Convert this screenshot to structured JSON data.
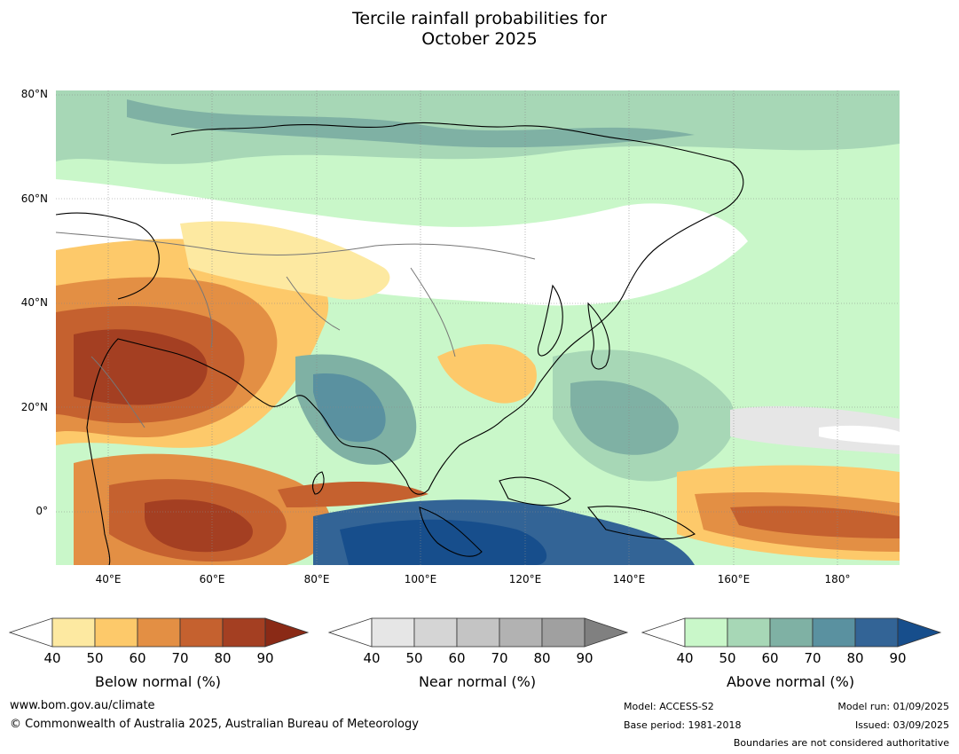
{
  "title_line1": "Tercile rainfall probabilities for",
  "title_line2": "October 2025",
  "map": {
    "lat_labels": [
      "80°N",
      "60°N",
      "40°N",
      "20°N",
      "0°"
    ],
    "lon_labels": [
      "40°E",
      "60°E",
      "80°E",
      "100°E",
      "120°E",
      "140°E",
      "160°E",
      "180°"
    ]
  },
  "colorbars": [
    {
      "title": "Below normal (%)",
      "ticks": [
        "40",
        "50",
        "60",
        "70",
        "80",
        "90"
      ],
      "colors": [
        "#ffffff",
        "#fde9a1",
        "#fdc96a",
        "#e38f44",
        "#c5612f",
        "#a43f22",
        "#8a2a16"
      ]
    },
    {
      "title": "Near normal (%)",
      "ticks": [
        "40",
        "50",
        "60",
        "70",
        "80",
        "90"
      ],
      "colors": [
        "#ffffff",
        "#e6e6e6",
        "#d5d5d5",
        "#c4c4c4",
        "#b2b2b2",
        "#a0a0a0",
        "#808080"
      ]
    },
    {
      "title": "Above normal (%)",
      "ticks": [
        "40",
        "50",
        "60",
        "70",
        "80",
        "90"
      ],
      "colors": [
        "#ffffff",
        "#c9f7c9",
        "#a7d7b6",
        "#7fb1a4",
        "#5a91a0",
        "#336496",
        "#174e8c"
      ]
    }
  ],
  "footer": {
    "website": "www.bom.gov.au/climate",
    "copyright": "© Commonwealth of Australia 2025, Australian Bureau of Meteorology",
    "model": "Model: ACCESS-S2",
    "base_period": "Base period: 1981-2018",
    "model_run": "Model run: 01/09/2025",
    "issued": "Issued: 03/09/2025",
    "disclaimer": "Boundaries are not considered authoritative"
  }
}
